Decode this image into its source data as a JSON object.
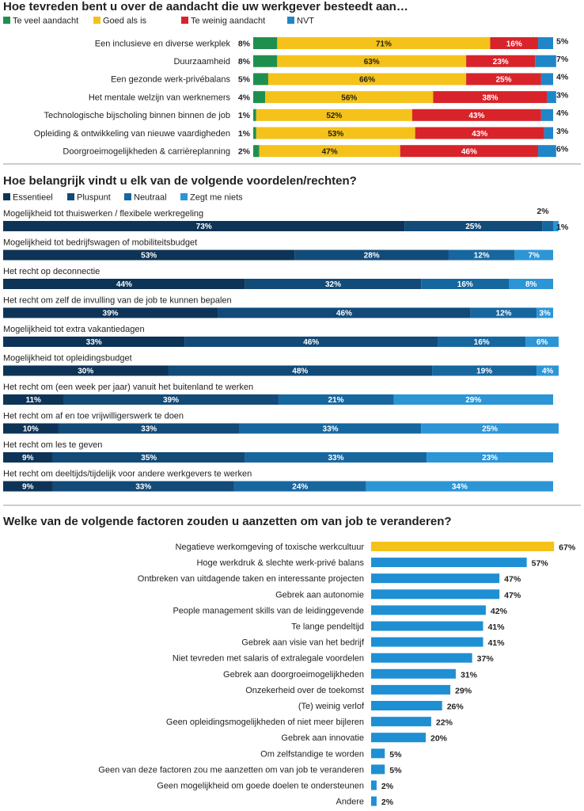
{
  "colors": {
    "sat": [
      "#1f8f4e",
      "#f4c21a",
      "#d8232a",
      "#1f86c8"
    ],
    "imp": [
      "#0d3457",
      "#124a78",
      "#17679f",
      "#2b95d6"
    ],
    "factor": "#1f8fd3",
    "factor_highlight": "#f4c21a",
    "divider": "#9a9a9a"
  },
  "chart_data": [
    {
      "type": "bar",
      "orientation": "horizontal",
      "stacking": "100%",
      "title": "Hoe tevreden bent u over de aandacht die uw werkgever besteedt aan…",
      "legend_position": "top-left",
      "categories": [
        "Een inclusieve en diverse werkplek",
        "Duurzaamheid",
        "Een gezonde werk-privébalans",
        "Het mentale welzijn van werknemers",
        "Technologische bijscholing binnen binnen de job",
        "Opleiding & ontwikkeling van nieuwe vaardigheden",
        "Doorgroeimogelijkheden & carrièreplanning"
      ],
      "series": [
        {
          "name": "Te veel aandacht",
          "values": [
            8,
            8,
            5,
            4,
            1,
            1,
            2
          ]
        },
        {
          "name": "Goed als is",
          "values": [
            71,
            63,
            66,
            56,
            52,
            53,
            47
          ]
        },
        {
          "name": "Te weinig aandacht",
          "values": [
            16,
            23,
            25,
            38,
            43,
            43,
            46
          ]
        },
        {
          "name": "NVT",
          "values": [
            5,
            7,
            4,
            3,
            4,
            3,
            6
          ]
        }
      ]
    },
    {
      "type": "bar",
      "orientation": "horizontal",
      "stacking": "100%",
      "title": "Hoe belangrijk vindt u elk van de volgende voordelen/rechten?",
      "legend_position": "top-left",
      "categories": [
        "Mogelijkheid tot thuiswerken / flexibele werkregeling",
        "Mogelijkheid tot bedrijfswagen of mobiliteitsbudget",
        "Het recht op deconnectie",
        "Het recht om zelf de invulling van de job te kunnen bepalen",
        "Mogelijkheid tot extra vakantiedagen",
        "Mogelijkheid tot opleidingsbudget",
        "Het recht om (een week per jaar) vanuit het buitenland te werken",
        "Het recht om af en toe vrijwilligerswerk te doen",
        "Het recht om les te geven",
        "Het recht om deeltijds/tijdelijk voor andere werkgevers te werken"
      ],
      "series": [
        {
          "name": "Essentieel",
          "values": [
            73,
            53,
            44,
            39,
            33,
            30,
            11,
            10,
            9,
            9
          ]
        },
        {
          "name": "Pluspunt",
          "values": [
            25,
            28,
            32,
            46,
            46,
            48,
            39,
            33,
            35,
            33
          ]
        },
        {
          "name": "Neutraal",
          "values": [
            2,
            12,
            16,
            12,
            16,
            19,
            21,
            33,
            33,
            24
          ]
        },
        {
          "name": "Zegt me niets",
          "values": [
            1,
            7,
            8,
            3,
            6,
            4,
            29,
            25,
            23,
            34
          ]
        }
      ]
    },
    {
      "type": "bar",
      "orientation": "horizontal",
      "title": "Welke van de volgende factoren zouden u aanzetten om van job te veranderen?",
      "categories": [
        "Negatieve werkomgeving of toxische werkcultuur",
        "Hoge werkdruk & slechte werk-privé balans",
        "Ontbreken van uitdagende taken en interessante projecten",
        "Gebrek aan autonomie",
        "People management skills van de leidinggevende",
        "Te lange pendeltijd",
        "Gebrek aan visie van het bedrijf",
        "Niet tevreden met salaris of extralegale voordelen",
        "Gebrek aan doorgroeimogelijkheden",
        "Onzekerheid over de toekomst",
        "(Te) weinig verlof",
        "Geen opleidingsmogelijkheden of niet meer bijleren",
        "Gebrek aan innovatie",
        "Om zelfstandige te worden",
        "Geen van deze factoren zou me aanzetten om van job te veranderen",
        "Geen mogelijkheid om goede doelen te ondersteunen",
        "Andere"
      ],
      "values": [
        67,
        57,
        47,
        47,
        42,
        41,
        41,
        37,
        31,
        29,
        26,
        22,
        20,
        5,
        5,
        2,
        2
      ],
      "highlight_index": 0
    }
  ]
}
